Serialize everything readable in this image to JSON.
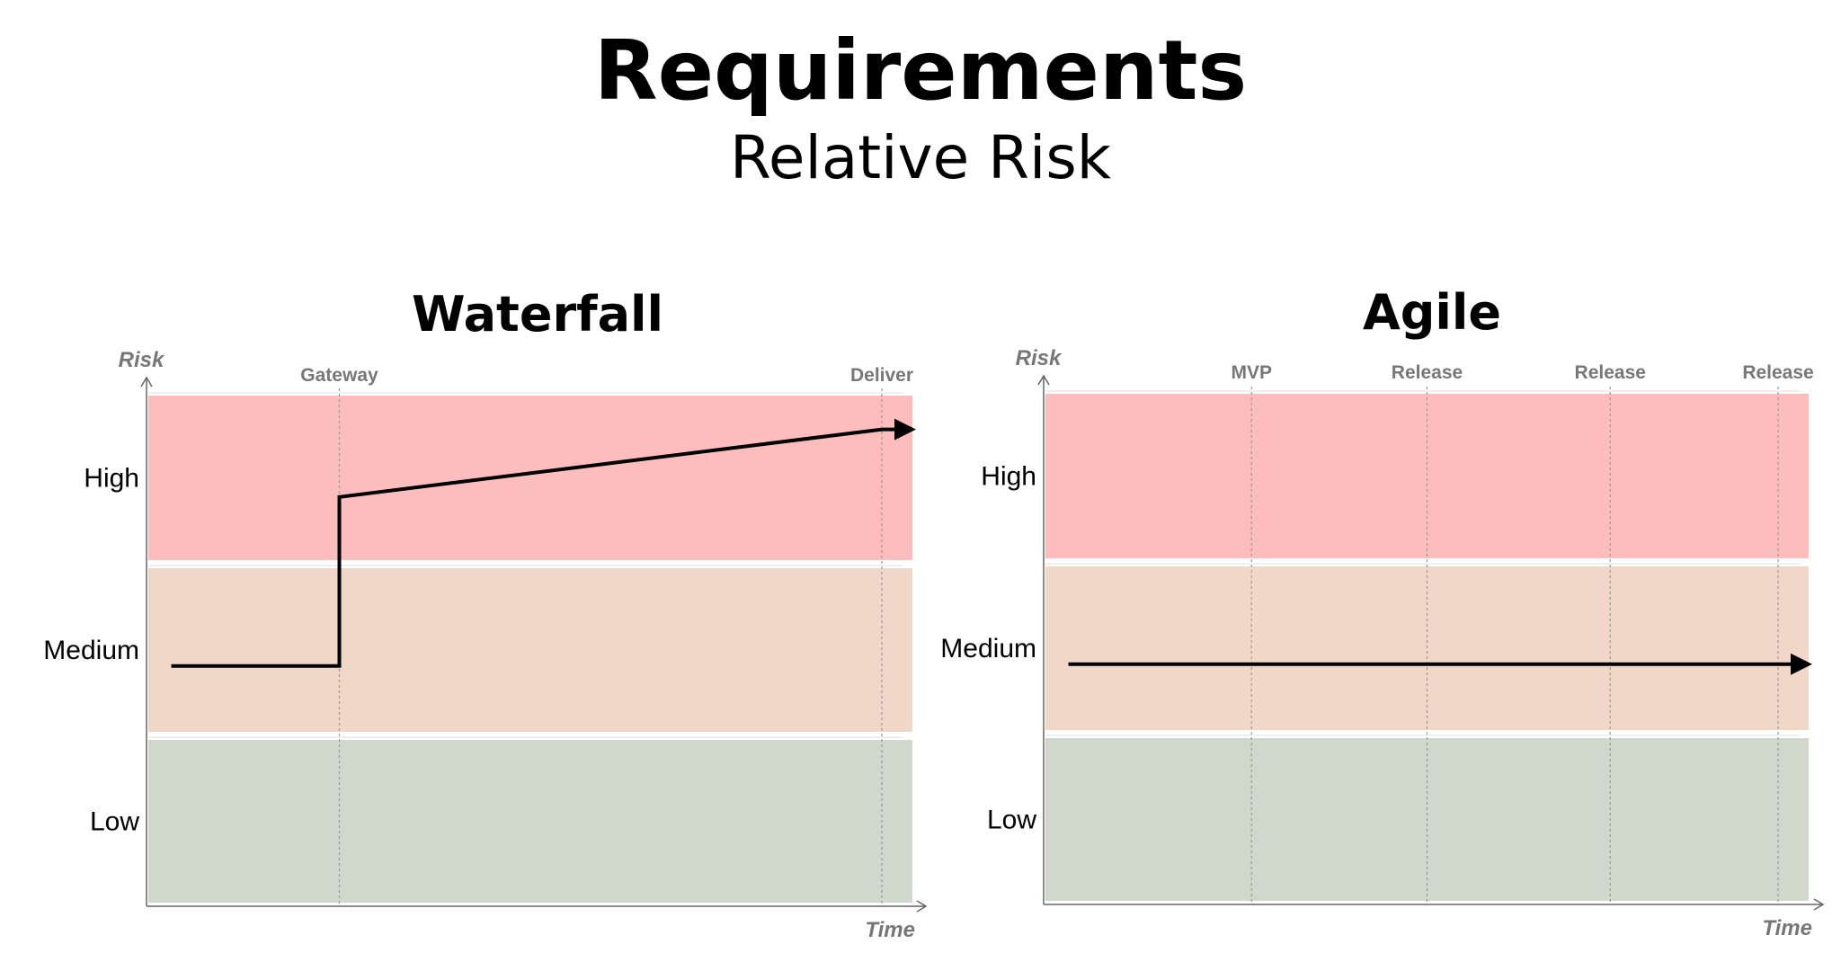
{
  "header": {
    "title": "Requirements",
    "subtitle": "Relative Risk"
  },
  "colors": {
    "high": "#fdbdbd",
    "medium": "#f0d7c7",
    "low": "#cfd8cb",
    "line": "#000000",
    "marker_label": "#777777"
  },
  "chart_data": [
    {
      "type": "line",
      "title": "Waterfall",
      "xlabel": "Time",
      "ylabel": "Risk",
      "y_categories": [
        "Low",
        "Medium",
        "High"
      ],
      "xlim": [
        0,
        1
      ],
      "ylim": [
        0,
        3
      ],
      "markers": [
        {
          "label": "Gateway",
          "x": 0.25
        },
        {
          "label": "Deliver",
          "x": 0.96
        }
      ],
      "series": [
        {
          "points": [
            [
              0.03,
              1.4
            ],
            [
              0.25,
              1.4
            ],
            [
              0.25,
              2.4
            ],
            [
              0.96,
              2.8
            ],
            [
              1.0,
              2.8
            ]
          ],
          "arrow": true
        }
      ]
    },
    {
      "type": "line",
      "title": "Agile",
      "xlabel": "Time",
      "ylabel": "Risk",
      "y_categories": [
        "Low",
        "Medium",
        "High"
      ],
      "xlim": [
        0,
        1
      ],
      "ylim": [
        0,
        3
      ],
      "markers": [
        {
          "label": "MVP",
          "x": 0.27
        },
        {
          "label": "Release",
          "x": 0.5
        },
        {
          "label": "Release",
          "x": 0.74
        },
        {
          "label": "Release",
          "x": 0.96
        }
      ],
      "series": [
        {
          "points": [
            [
              0.03,
              1.4
            ],
            [
              1.0,
              1.4
            ]
          ],
          "arrow": true
        }
      ]
    }
  ]
}
